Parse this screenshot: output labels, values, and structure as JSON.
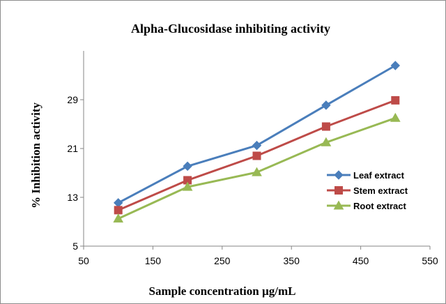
{
  "chart_data": {
    "type": "line",
    "title": "Alpha-Glucosidase inhibiting activity",
    "xlabel": "Sample concentration µg/mL",
    "ylabel": "% Inhibition activity",
    "x": [
      100,
      200,
      300,
      400,
      500
    ],
    "xlim": [
      50,
      550
    ],
    "ylim": [
      5,
      37
    ],
    "xticks": [
      "50",
      "150",
      "250",
      "350",
      "450",
      "550"
    ],
    "yticks": [
      "5",
      "13",
      "21",
      "29"
    ],
    "grid": false,
    "legend_position": "right",
    "series": [
      {
        "name": "Leaf extract",
        "color": "#4a7ebb",
        "marker": "diamond",
        "values": [
          12.1,
          18.1,
          21.5,
          28.1,
          34.6
        ]
      },
      {
        "name": "Stem extract",
        "color": "#be4b48",
        "marker": "square",
        "values": [
          10.9,
          15.8,
          19.8,
          24.6,
          28.9
        ]
      },
      {
        "name": "Root extract",
        "color": "#98b954",
        "marker": "triangle",
        "values": [
          9.5,
          14.7,
          17.1,
          22.0,
          26.0
        ]
      }
    ]
  }
}
